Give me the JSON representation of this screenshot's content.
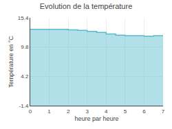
{
  "chart_data": {
    "type": "area",
    "title": "Evolution de la température",
    "x_label": "heure par heure",
    "y_label": "Température en °C",
    "x": [
      0,
      1,
      2,
      2.5,
      3,
      3.5,
      4,
      4.5,
      5,
      5.5,
      6,
      6.5,
      7
    ],
    "values": [
      13.2,
      13.2,
      13.1,
      13.0,
      12.8,
      12.6,
      12.3,
      12.1,
      12.0,
      12.0,
      11.9,
      12.0,
      12.0
    ],
    "color": "#55bbcc",
    "line_style": "step",
    "xlim": [
      0,
      7
    ],
    "ylim": [
      -1.4,
      15.4
    ],
    "xticks": [
      0,
      1,
      2,
      3,
      4,
      5,
      6,
      7
    ],
    "yticks": [
      -1.4,
      4.2,
      9.8,
      15.4
    ],
    "grid": true
  }
}
